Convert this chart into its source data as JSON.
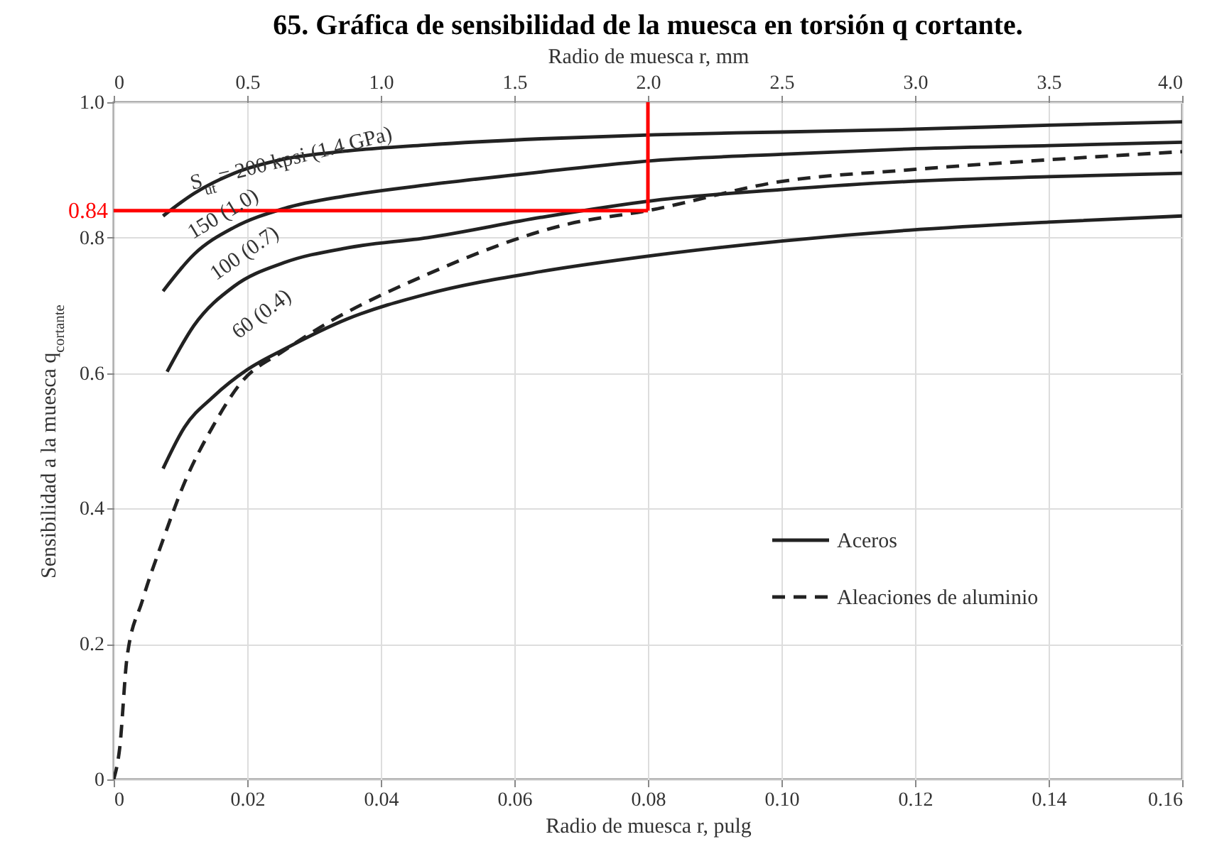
{
  "chart_data": {
    "type": "line",
    "title": "65. Gráfica de sensibilidad de la muesca en torsión q cortante.",
    "xlabel": "Radio de muesca r, pulg",
    "ylabel": "Sensibilidad a la muesca q$_{cortante}$",
    "x2label": "Radio de muesca r, mm",
    "xlim": [
      0,
      0.16
    ],
    "xticks": [
      0,
      0.02,
      0.04,
      0.06,
      0.08,
      {
        "value": 0.1,
        "label": "0.10"
      },
      0.12,
      0.14,
      0.16
    ],
    "x2lim": [
      0,
      4
    ],
    "x2ticks": [
      0,
      0.5,
      {
        "value": 1,
        "label": "1.0"
      },
      1.5,
      {
        "value": 2,
        "label": "2.0"
      },
      2.5,
      {
        "value": 3,
        "label": "3.0"
      },
      3.5,
      {
        "value": 4,
        "label": "4.0"
      }
    ],
    "ylim": [
      0,
      1
    ],
    "yticks": [
      0,
      0.2,
      0.4,
      0.6,
      0.8,
      {
        "value": 1,
        "label": "1.0"
      }
    ],
    "grid": true,
    "legend": "bottom right",
    "series": [
      {
        "name": "Aceros",
        "color": "#222222",
        "line_style": "solid",
        "x": [
          0.0074,
          0.012,
          0.018,
          0.0255,
          0.035,
          0.047,
          0.064,
          0.081,
          0.1,
          0.119,
          0.14,
          0.16
        ],
        "values": [
          0.832,
          0.865,
          0.895,
          0.916,
          0.928,
          0.937,
          0.946,
          0.952,
          0.956,
          0.96,
          0.966,
          0.971
        ]
      },
      {
        "color": "#222222",
        "line_style": "solid",
        "x": [
          0.0074,
          0.012,
          0.018,
          0.0255,
          0.035,
          0.047,
          0.064,
          0.081,
          0.1,
          0.119,
          0.14,
          0.16
        ],
        "values": [
          0.721,
          0.775,
          0.815,
          0.843,
          0.862,
          0.878,
          0.897,
          0.914,
          0.923,
          0.931,
          0.936,
          0.941
        ]
      },
      {
        "color": "#222222",
        "line_style": "solid",
        "x": [
          0.008,
          0.012,
          0.018,
          0.0255,
          0.035,
          0.047,
          0.064,
          0.081,
          0.1,
          0.119,
          0.14,
          0.16
        ],
        "values": [
          0.602,
          0.67,
          0.728,
          0.763,
          0.785,
          0.8,
          0.83,
          0.855,
          0.871,
          0.883,
          0.89,
          0.895
        ]
      },
      {
        "color": "#222222",
        "line_style": "solid",
        "x": [
          0.0074,
          0.0106,
          0.0149,
          0.02,
          0.0255,
          0.035,
          0.047,
          0.064,
          0.081,
          0.1,
          0.119,
          0.14,
          0.16
        ],
        "values": [
          0.459,
          0.52,
          0.565,
          0.605,
          0.635,
          0.68,
          0.717,
          0.75,
          0.774,
          0.795,
          0.811,
          0.823,
          0.832
        ]
      },
      {
        "name": "Aleaciones de aluminio",
        "color": "#222222",
        "line_style": "dashed",
        "x": [
          0,
          0.0009,
          0.002,
          0.0043,
          0.0074,
          0.0106,
          0.0149,
          0.019,
          0.0255,
          0.03,
          0.047,
          0.068,
          0.08,
          0.1,
          0.119,
          0.14,
          0.16
        ],
        "values": [
          0,
          0.046,
          0.18,
          0.264,
          0.354,
          0.438,
          0.522,
          0.585,
          0.633,
          0.662,
          0.746,
          0.82,
          0.84,
          0.883,
          0.9,
          0.915,
          0.927
        ]
      }
    ],
    "annotations": [
      "S$_{ut}$ = 200 kpsi  (1.4 GPa)",
      "150  (1.0)",
      "100  (0.7)",
      "60  (0.4)"
    ],
    "ref_lines": [
      {
        "axis": "y",
        "value": 0.84,
        "label": "0.84",
        "color": "#ff0000"
      },
      {
        "axis": "x",
        "value": 0.08,
        "color": "#ff0000"
      }
    ]
  }
}
